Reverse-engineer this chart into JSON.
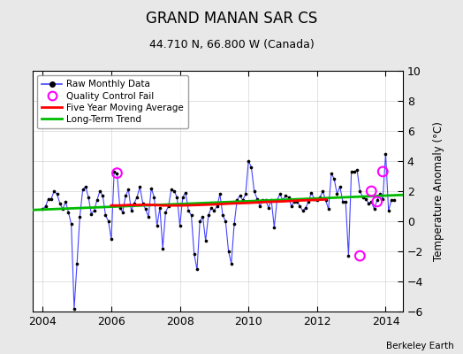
{
  "title": "GRAND MANAN SAR CS",
  "subtitle": "44.710 N, 66.800 W (Canada)",
  "ylabel": "Temperature Anomaly (°C)",
  "credit": "Berkeley Earth",
  "ylim": [
    -6,
    10
  ],
  "yticks": [
    -6,
    -4,
    -2,
    0,
    2,
    4,
    6,
    8,
    10
  ],
  "xlim": [
    2003.7,
    2014.5
  ],
  "xticks": [
    2004,
    2006,
    2008,
    2010,
    2012,
    2014
  ],
  "bg_color": "#e8e8e8",
  "plot_bg_color": "#ffffff",
  "raw_color": "#4444ff",
  "dot_color": "#000000",
  "ma_color": "#ff0000",
  "trend_color": "#00bb00",
  "qc_color": "#ff00ff",
  "raw_monthly_x": [
    2004.0,
    2004.083,
    2004.167,
    2004.25,
    2004.333,
    2004.417,
    2004.5,
    2004.583,
    2004.667,
    2004.75,
    2004.833,
    2004.917,
    2005.0,
    2005.083,
    2005.167,
    2005.25,
    2005.333,
    2005.417,
    2005.5,
    2005.583,
    2005.667,
    2005.75,
    2005.833,
    2005.917,
    2006.0,
    2006.083,
    2006.167,
    2006.25,
    2006.333,
    2006.417,
    2006.5,
    2006.583,
    2006.667,
    2006.75,
    2006.833,
    2006.917,
    2007.0,
    2007.083,
    2007.167,
    2007.25,
    2007.333,
    2007.417,
    2007.5,
    2007.583,
    2007.667,
    2007.75,
    2007.833,
    2007.917,
    2008.0,
    2008.083,
    2008.167,
    2008.25,
    2008.333,
    2008.417,
    2008.5,
    2008.583,
    2008.667,
    2008.75,
    2008.833,
    2008.917,
    2009.0,
    2009.083,
    2009.167,
    2009.25,
    2009.333,
    2009.417,
    2009.5,
    2009.583,
    2009.667,
    2009.75,
    2009.833,
    2009.917,
    2010.0,
    2010.083,
    2010.167,
    2010.25,
    2010.333,
    2010.417,
    2010.5,
    2010.583,
    2010.667,
    2010.75,
    2010.833,
    2010.917,
    2011.0,
    2011.083,
    2011.167,
    2011.25,
    2011.333,
    2011.417,
    2011.5,
    2011.583,
    2011.667,
    2011.75,
    2011.833,
    2011.917,
    2012.0,
    2012.083,
    2012.167,
    2012.25,
    2012.333,
    2012.417,
    2012.5,
    2012.583,
    2012.667,
    2012.75,
    2012.833,
    2012.917,
    2013.0,
    2013.083,
    2013.167,
    2013.25,
    2013.333,
    2013.417,
    2013.5,
    2013.583,
    2013.667,
    2013.75,
    2013.833,
    2013.917,
    2014.0,
    2014.083,
    2014.167,
    2014.25
  ],
  "raw_monthly_y": [
    0.8,
    1.0,
    1.5,
    1.5,
    2.0,
    1.8,
    1.2,
    0.8,
    1.3,
    0.6,
    -0.2,
    -5.8,
    -2.8,
    0.3,
    2.1,
    2.3,
    1.6,
    0.5,
    0.7,
    1.4,
    2.0,
    1.7,
    0.4,
    0.0,
    -1.2,
    3.3,
    3.2,
    0.9,
    0.6,
    1.7,
    2.1,
    0.7,
    1.2,
    1.6,
    2.3,
    1.2,
    0.8,
    0.3,
    2.2,
    1.6,
    -0.3,
    0.9,
    -1.8,
    0.6,
    1.0,
    2.1,
    2.0,
    1.6,
    -0.3,
    1.6,
    1.9,
    0.7,
    0.4,
    -2.2,
    -3.2,
    0.0,
    0.3,
    -1.3,
    0.4,
    0.9,
    0.7,
    1.0,
    1.8,
    0.4,
    0.0,
    -2.0,
    -2.8,
    -0.2,
    1.4,
    1.7,
    1.4,
    1.8,
    4.0,
    3.6,
    2.0,
    1.5,
    1.0,
    1.4,
    1.4,
    0.9,
    1.4,
    -0.4,
    1.4,
    1.8,
    1.4,
    1.7,
    1.6,
    1.0,
    1.3,
    1.3,
    1.0,
    0.7,
    0.9,
    1.3,
    1.9,
    1.5,
    1.4,
    1.6,
    2.0,
    1.4,
    0.8,
    3.2,
    2.8,
    1.8,
    2.3,
    1.3,
    1.3,
    -2.3,
    3.3,
    3.3,
    3.4,
    2.0,
    1.6,
    1.5,
    1.2,
    1.3,
    0.8,
    1.4,
    1.8,
    1.5,
    4.5,
    0.7,
    1.4,
    1.4
  ],
  "moving_avg_x": [
    2006.0,
    2006.25,
    2006.5,
    2006.75,
    2007.0,
    2007.25,
    2007.5,
    2007.75,
    2008.0,
    2008.25,
    2008.5,
    2008.75,
    2009.0,
    2009.25,
    2009.5,
    2009.75,
    2010.0,
    2010.25,
    2010.5,
    2010.75,
    2011.0,
    2011.25,
    2011.5,
    2011.75,
    2012.0,
    2012.25
  ],
  "moving_avg_y": [
    1.05,
    1.05,
    1.08,
    1.08,
    1.1,
    1.08,
    1.05,
    1.05,
    1.05,
    1.06,
    1.08,
    1.1,
    1.12,
    1.15,
    1.18,
    1.2,
    1.22,
    1.25,
    1.28,
    1.3,
    1.32,
    1.35,
    1.38,
    1.4,
    1.42,
    1.45
  ],
  "trend_x": [
    2003.7,
    2014.5
  ],
  "trend_y": [
    0.75,
    1.75
  ],
  "qc_fail_x": [
    2006.167,
    2013.25,
    2013.583,
    2013.75,
    2013.917
  ],
  "qc_fail_y": [
    3.2,
    -2.3,
    2.0,
    1.3,
    3.3
  ]
}
